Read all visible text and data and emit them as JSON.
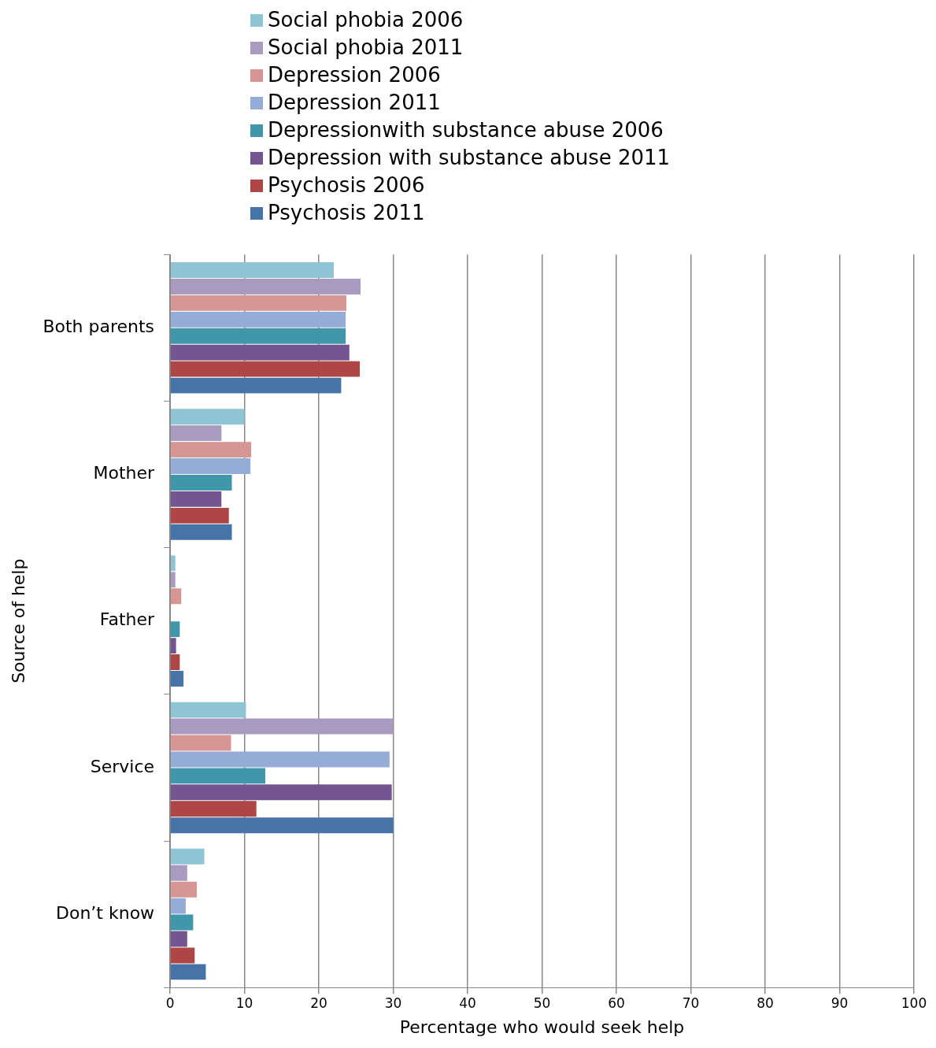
{
  "chart_data": {
    "type": "bar",
    "orientation": "horizontal",
    "xlabel": "Percentage who would seek help",
    "ylabel": "Source of help",
    "categories": [
      "Both parents",
      "Mother",
      "Father",
      "Service",
      "Don’t know"
    ],
    "series": [
      {
        "name": "Social phobia 2006",
        "color": "#8fc4d5",
        "values": [
          22.0,
          10.0,
          0.7,
          10.2,
          4.6
        ]
      },
      {
        "name": "Social phobia 2011",
        "color": "#a99bc0",
        "values": [
          25.6,
          6.9,
          0.7,
          30.0,
          2.3
        ]
      },
      {
        "name": "Depression 2006",
        "color": "#d69694",
        "values": [
          23.7,
          10.9,
          1.5,
          8.2,
          3.6
        ]
      },
      {
        "name": "Depression 2011",
        "color": "#95acd6",
        "values": [
          23.6,
          10.8,
          null,
          29.5,
          2.1
        ]
      },
      {
        "name": "Depressionwith substance abuse 2006",
        "color": "#4197aa",
        "values": [
          23.6,
          8.3,
          1.3,
          12.8,
          3.1
        ]
      },
      {
        "name": "Depression with substance abuse 2011",
        "color": "#735690",
        "values": [
          24.1,
          6.9,
          0.8,
          29.8,
          2.3
        ]
      },
      {
        "name": "Psychosis 2006",
        "color": "#ae4645",
        "values": [
          25.5,
          7.9,
          1.3,
          11.6,
          3.3
        ]
      },
      {
        "name": "Psychosis 2011",
        "color": "#4673a8",
        "values": [
          23.0,
          8.3,
          1.8,
          30.0,
          4.8
        ]
      }
    ],
    "xlim": [
      0,
      100
    ],
    "xticks": [
      0,
      10,
      20,
      30,
      40,
      50,
      60,
      70,
      80,
      90,
      100
    ],
    "grid": "x",
    "legend": "top"
  }
}
